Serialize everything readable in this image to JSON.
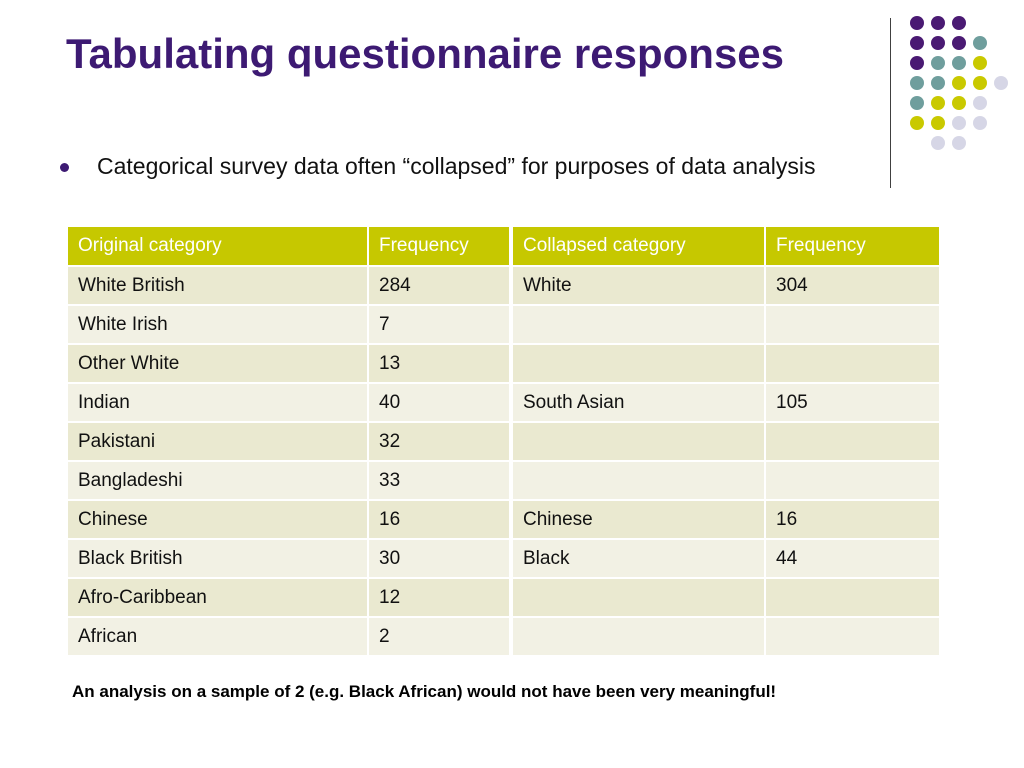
{
  "slide": {
    "title": "Tabulating questionnaire responses",
    "bullet": "Categorical survey data often “collapsed” for purposes of data analysis",
    "footnote": "An analysis on a sample of 2 (e.g. Black African) would not have been very meaningful!"
  },
  "colors": {
    "title": "#3d1a73",
    "header_bg": "#c6c800",
    "dot_purple": "#4a1a73",
    "dot_teal": "#6f9e9d",
    "dot_olive": "#c9c900",
    "dot_lavender": "#d6d6e6"
  },
  "decoration": {
    "dot_grid": [
      [
        "purple",
        "purple",
        "purple"
      ],
      [
        "purple",
        "purple",
        "purple",
        "teal"
      ],
      [
        "purple",
        "teal",
        "teal",
        "olive"
      ],
      [
        "teal",
        "teal",
        "olive",
        "olive",
        "lavender"
      ],
      [
        "teal",
        "olive",
        "olive",
        "lavender"
      ],
      [
        "olive",
        "olive",
        "lavender",
        "lavender"
      ],
      [
        "lavender",
        "lavender"
      ]
    ]
  },
  "table": {
    "headers": [
      "Original category",
      "Frequency",
      "Collapsed category",
      "Frequency"
    ],
    "rows": [
      [
        "White British",
        "284",
        "White",
        "304"
      ],
      [
        "White Irish",
        "7",
        "",
        ""
      ],
      [
        "Other White",
        "13",
        "",
        ""
      ],
      [
        "Indian",
        "40",
        "South Asian",
        "105"
      ],
      [
        "Pakistani",
        "32",
        "",
        ""
      ],
      [
        "Bangladeshi",
        "33",
        "",
        ""
      ],
      [
        "Chinese",
        "16",
        "Chinese",
        "16"
      ],
      [
        "Black British",
        "30",
        "Black",
        "44"
      ],
      [
        "Afro-Caribbean",
        "12",
        "",
        ""
      ],
      [
        "African",
        "2",
        "",
        ""
      ]
    ]
  }
}
